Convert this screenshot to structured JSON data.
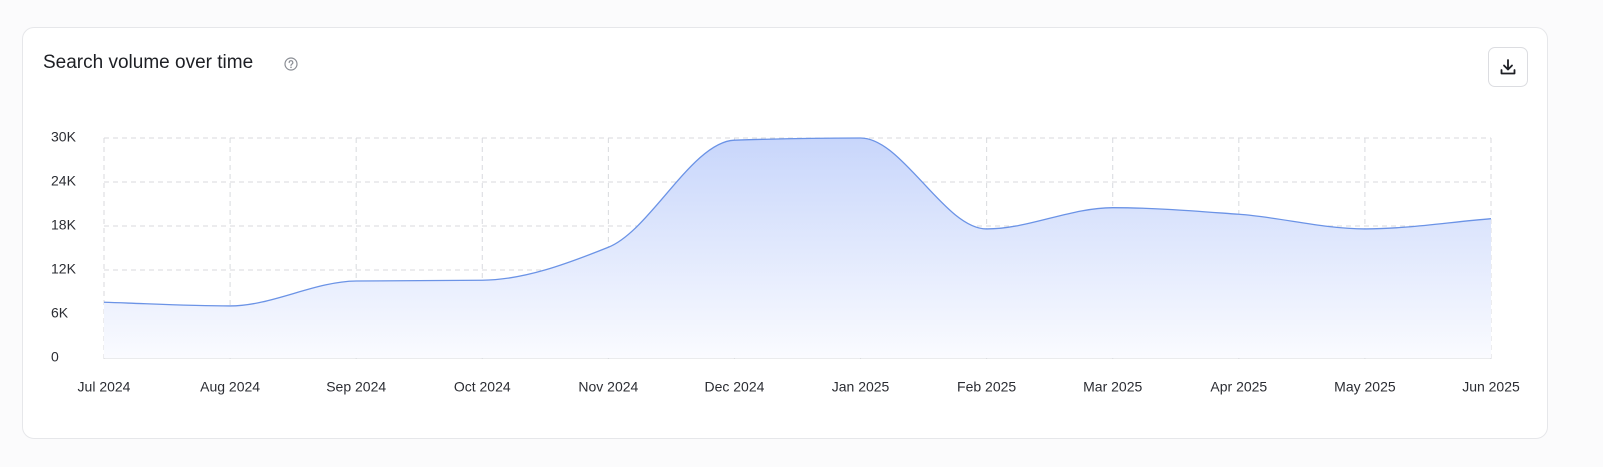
{
  "chart_data": {
    "type": "area",
    "title": "Search volume over time",
    "categories": [
      "Jul 2024",
      "Aug 2024",
      "Sep 2024",
      "Oct 2024",
      "Nov 2024",
      "Dec 2024",
      "Jan 2025",
      "Feb 2025",
      "Mar 2025",
      "Apr 2025",
      "May 2025",
      "Jun 2025"
    ],
    "values": [
      7600,
      7100,
      10500,
      10600,
      15100,
      29700,
      30000,
      17600,
      20500,
      19600,
      17600,
      19000
    ],
    "color": "#6b93e6",
    "ylim": [
      0,
      30000
    ],
    "yticks": [
      0,
      {
        "value": 6000,
        "label": "6K"
      },
      {
        "value": 12000,
        "label": "12K"
      },
      {
        "value": 18000,
        "label": "18K"
      },
      {
        "value": 24000,
        "label": "24K"
      },
      {
        "value": 30000,
        "label": "30K"
      }
    ],
    "grid": true
  }
}
